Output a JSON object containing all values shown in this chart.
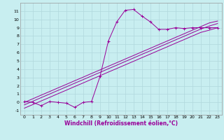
{
  "xlabel": "Windchill (Refroidissement éolien,°C)",
  "bg_color": "#c8eef0",
  "grid_color": "#b0d8dc",
  "line_color": "#990099",
  "x_windchill": [
    0,
    1,
    2,
    3,
    4,
    5,
    6,
    7,
    8,
    9,
    10,
    11,
    12,
    13,
    14,
    15,
    16,
    17,
    18,
    19,
    20,
    21,
    22,
    23
  ],
  "y_measured": [
    0.1,
    0.0,
    -0.4,
    0.1,
    0.0,
    -0.1,
    -0.6,
    0.0,
    0.1,
    3.1,
    7.4,
    9.7,
    11.1,
    11.2,
    10.4,
    9.7,
    8.8,
    8.8,
    9.0,
    8.9,
    9.0,
    9.0,
    9.0,
    9.0
  ],
  "y_line1": [
    0.0,
    0.43,
    0.87,
    1.3,
    1.74,
    2.17,
    2.61,
    3.04,
    3.48,
    3.91,
    4.35,
    4.78,
    5.22,
    5.65,
    6.09,
    6.52,
    6.96,
    7.39,
    7.83,
    8.26,
    8.7,
    9.13,
    9.57,
    9.8
  ],
  "y_line2": [
    -0.3,
    0.13,
    0.57,
    1.0,
    1.44,
    1.87,
    2.31,
    2.74,
    3.18,
    3.61,
    4.05,
    4.48,
    4.92,
    5.35,
    5.79,
    6.22,
    6.66,
    7.09,
    7.53,
    7.96,
    8.4,
    8.83,
    9.2,
    9.5
  ],
  "y_line3": [
    -0.7,
    -0.27,
    0.17,
    0.6,
    1.04,
    1.47,
    1.91,
    2.34,
    2.78,
    3.21,
    3.65,
    4.08,
    4.52,
    4.95,
    5.39,
    5.82,
    6.26,
    6.69,
    7.13,
    7.56,
    8.0,
    8.43,
    8.7,
    9.0
  ],
  "ylim": [
    -1.5,
    12.0
  ],
  "xlim": [
    -0.5,
    23.5
  ],
  "yticks": [
    -1,
    0,
    1,
    2,
    3,
    4,
    5,
    6,
    7,
    8,
    9,
    10,
    11
  ],
  "xticks": [
    0,
    1,
    2,
    3,
    4,
    5,
    6,
    7,
    8,
    9,
    10,
    11,
    12,
    13,
    14,
    15,
    16,
    17,
    18,
    19,
    20,
    21,
    22,
    23
  ],
  "tick_fontsize": 4.5,
  "xlabel_fontsize": 5.5,
  "linewidth": 0.7,
  "marker_size": 3
}
